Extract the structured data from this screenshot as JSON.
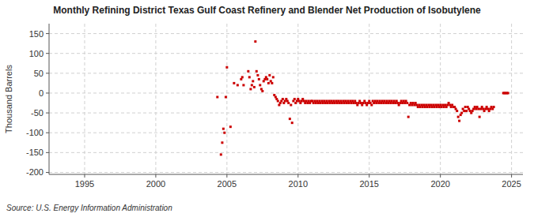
{
  "chart_data": {
    "type": "scatter",
    "title": "Monthly Refining District Texas Gulf Coast Refinery and Blender Net Production of Isobutylene",
    "ylabel": "Thousand Barrels",
    "source": "Source: U.S. Energy Information Administration",
    "color": "#cc0000",
    "marker": "square",
    "grid": true,
    "xlim": [
      1992.5,
      2025.8
    ],
    "ylim": [
      -205,
      175
    ],
    "xticks": [
      1995,
      2000,
      2005,
      2010,
      2015,
      2020,
      2025
    ],
    "yticks": [
      -200,
      -150,
      -100,
      -50,
      0,
      50,
      100,
      150
    ],
    "x": [
      2004.33,
      2004.58,
      2004.67,
      2004.75,
      2004.83,
      2004.92,
      2005.0,
      2005.25,
      2005.5,
      2005.75,
      2006.0,
      2006.08,
      2006.17,
      2006.5,
      2006.58,
      2006.67,
      2006.75,
      2006.83,
      2006.92,
      2007.0,
      2007.08,
      2007.17,
      2007.25,
      2007.33,
      2007.42,
      2007.5,
      2007.58,
      2007.67,
      2007.75,
      2007.83,
      2007.92,
      2008.0,
      2008.08,
      2008.17,
      2008.25,
      2008.33,
      2008.42,
      2008.5,
      2008.58,
      2008.67,
      2008.75,
      2008.83,
      2008.92,
      2009.0,
      2009.08,
      2009.17,
      2009.25,
      2009.33,
      2009.42,
      2009.5,
      2009.58,
      2009.67,
      2009.75,
      2009.83,
      2009.92,
      2010.0,
      2010.08,
      2010.17,
      2010.25,
      2010.33,
      2010.42,
      2010.5,
      2010.58,
      2010.67,
      2010.75,
      2010.83,
      2010.92,
      2011.0,
      2011.08,
      2011.17,
      2011.25,
      2011.33,
      2011.42,
      2011.5,
      2011.58,
      2011.67,
      2011.75,
      2011.83,
      2011.92,
      2012.0,
      2012.08,
      2012.17,
      2012.25,
      2012.33,
      2012.42,
      2012.5,
      2012.58,
      2012.67,
      2012.75,
      2012.83,
      2012.92,
      2013.0,
      2013.08,
      2013.17,
      2013.25,
      2013.33,
      2013.42,
      2013.5,
      2013.58,
      2013.67,
      2013.75,
      2013.83,
      2013.92,
      2014.0,
      2014.08,
      2014.17,
      2014.25,
      2014.33,
      2014.42,
      2014.5,
      2014.58,
      2014.67,
      2014.75,
      2014.83,
      2014.92,
      2015.0,
      2015.08,
      2015.17,
      2015.25,
      2015.33,
      2015.42,
      2015.5,
      2015.58,
      2015.67,
      2015.75,
      2015.83,
      2015.92,
      2016.0,
      2016.08,
      2016.17,
      2016.25,
      2016.33,
      2016.42,
      2016.5,
      2016.58,
      2016.67,
      2016.75,
      2016.83,
      2016.92,
      2017.0,
      2017.08,
      2017.17,
      2017.25,
      2017.33,
      2017.42,
      2017.5,
      2017.58,
      2017.67,
      2017.75,
      2017.83,
      2017.92,
      2018.0,
      2018.08,
      2018.17,
      2018.25,
      2018.33,
      2018.42,
      2018.5,
      2018.58,
      2018.67,
      2018.75,
      2018.83,
      2018.92,
      2019.0,
      2019.08,
      2019.17,
      2019.25,
      2019.33,
      2019.42,
      2019.5,
      2019.58,
      2019.67,
      2019.75,
      2019.83,
      2019.92,
      2020.0,
      2020.08,
      2020.17,
      2020.25,
      2020.33,
      2020.42,
      2020.5,
      2020.58,
      2020.67,
      2020.75,
      2020.83,
      2020.92,
      2021.0,
      2021.08,
      2021.17,
      2021.25,
      2021.33,
      2021.42,
      2021.5,
      2021.58,
      2021.67,
      2021.75,
      2021.83,
      2021.92,
      2022.0,
      2022.08,
      2022.17,
      2022.25,
      2022.33,
      2022.42,
      2022.5,
      2022.58,
      2022.67,
      2022.75,
      2022.83,
      2022.92,
      2023.0,
      2023.08,
      2023.17,
      2023.25,
      2023.33,
      2023.42,
      2023.5,
      2023.58,
      2023.67,
      2023.75,
      2024.42,
      2024.5,
      2024.58,
      2024.67,
      2024.75
    ],
    "values": [
      -10,
      -155,
      -125,
      -90,
      -100,
      -10,
      65,
      -85,
      25,
      20,
      35,
      40,
      20,
      55,
      40,
      10,
      20,
      30,
      15,
      130,
      55,
      45,
      35,
      20,
      10,
      5,
      30,
      35,
      40,
      35,
      25,
      45,
      30,
      25,
      40,
      -5,
      -10,
      -15,
      -20,
      -30,
      -25,
      -20,
      -15,
      -25,
      -20,
      -15,
      -20,
      -25,
      -65,
      -30,
      -75,
      -20,
      -15,
      -25,
      -20,
      -15,
      -20,
      -25,
      -20,
      -15,
      -20,
      -25,
      -20,
      -25,
      -20,
      -25,
      -20,
      -20,
      -25,
      -20,
      -25,
      -20,
      -25,
      -20,
      -25,
      -20,
      -25,
      -20,
      -25,
      -20,
      -25,
      -20,
      -25,
      -20,
      -25,
      -20,
      -25,
      -20,
      -25,
      -20,
      -25,
      -20,
      -25,
      -20,
      -25,
      -20,
      -25,
      -20,
      -25,
      -20,
      -25,
      -20,
      -25,
      -20,
      -25,
      -30,
      -25,
      -20,
      -25,
      -30,
      -25,
      -20,
      -25,
      -30,
      -25,
      -20,
      -25,
      -30,
      -20,
      -25,
      -20,
      -25,
      -20,
      -25,
      -20,
      -25,
      -20,
      -25,
      -20,
      -25,
      -20,
      -25,
      -20,
      -25,
      -20,
      -25,
      -20,
      -25,
      -20,
      -25,
      -30,
      -25,
      -20,
      -25,
      -20,
      -25,
      -20,
      -25,
      -60,
      -30,
      -25,
      -30,
      -25,
      -30,
      -25,
      -30,
      -35,
      -30,
      -35,
      -30,
      -35,
      -30,
      -35,
      -30,
      -35,
      -30,
      -35,
      -30,
      -35,
      -30,
      -35,
      -30,
      -35,
      -30,
      -35,
      -30,
      -35,
      -30,
      -35,
      -30,
      -35,
      -30,
      -25,
      -30,
      -35,
      -30,
      -35,
      -35,
      -40,
      -45,
      -60,
      -70,
      -55,
      -50,
      -40,
      -45,
      -35,
      -45,
      -35,
      -40,
      -45,
      -50,
      -45,
      -40,
      -35,
      -40,
      -35,
      -40,
      -60,
      -40,
      -35,
      -40,
      -45,
      -40,
      -35,
      -40,
      -45,
      -40,
      -35,
      -40,
      -35,
      0,
      0,
      0,
      0,
      0
    ]
  }
}
